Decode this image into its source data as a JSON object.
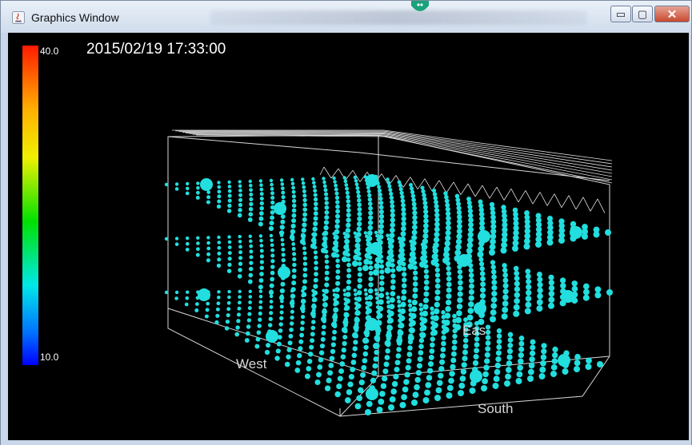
{
  "window": {
    "title": "Graphics Window",
    "buttons": {
      "minimize": "▭",
      "maximize": "▢",
      "close": "✕"
    }
  },
  "scene": {
    "timestamp": "2015/02/19 17:33:00",
    "axis_labels": {
      "west": "West",
      "east": "Eas",
      "south": "South"
    },
    "color_scale": {
      "max_label": "40.0",
      "min_label": "10.0",
      "max": 40.0,
      "min": 10.0,
      "point_color": "#22dede"
    }
  }
}
